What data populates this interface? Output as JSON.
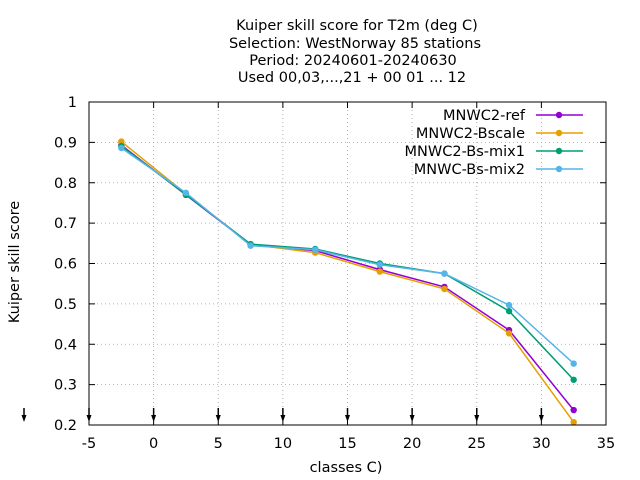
{
  "chart_data": {
    "type": "line",
    "title_lines": [
      "Kuiper skill score  for T2m (deg C)",
      "Selection: WestNorway     85 stations",
      "Period: 20240601-20240630",
      "Used 00,03,...,21 + 00 01 ... 12"
    ],
    "xlabel": "classes C)",
    "ylabel": "Kuiper skill score",
    "xlim": [
      -5,
      35
    ],
    "ylim": [
      0.2,
      1
    ],
    "xticks": [
      -5,
      0,
      5,
      10,
      15,
      20,
      25,
      30,
      35
    ],
    "yticks": [
      0.2,
      0.3,
      0.4,
      0.5,
      0.6,
      0.7,
      0.8,
      0.9,
      1
    ],
    "ytick_labels": [
      "0.2",
      "0.3",
      "0.4",
      "0.5",
      "0.6",
      "0.7",
      "0.8",
      "0.9",
      "1"
    ],
    "grid": true,
    "legend_position": "top-right",
    "x": [
      -2.5,
      2.5,
      7.5,
      12.5,
      17.5,
      22.5,
      27.5,
      32.5
    ],
    "bottom_arrows_x": [
      -5,
      0,
      5,
      10,
      15,
      20,
      25,
      30
    ],
    "series": [
      {
        "name": "MNWC2-ref",
        "color": "#9400d3",
        "values": [
          0.893,
          0.77,
          0.647,
          0.632,
          0.585,
          0.542,
          0.435,
          0.237
        ]
      },
      {
        "name": "MNWC2-Bscale",
        "color": "#e69f00",
        "values": [
          0.902,
          0.773,
          0.647,
          0.627,
          0.58,
          0.537,
          0.427,
          0.207
        ]
      },
      {
        "name": "MNWC2-Bs-mix1",
        "color": "#009e73",
        "values": [
          0.891,
          0.771,
          0.648,
          0.636,
          0.6,
          0.575,
          0.482,
          0.312
        ]
      },
      {
        "name": "MNWC-Bs-mix2",
        "color": "#56b4e9",
        "values": [
          0.886,
          0.775,
          0.644,
          0.634,
          0.597,
          0.575,
          0.497,
          0.352
        ]
      }
    ]
  }
}
